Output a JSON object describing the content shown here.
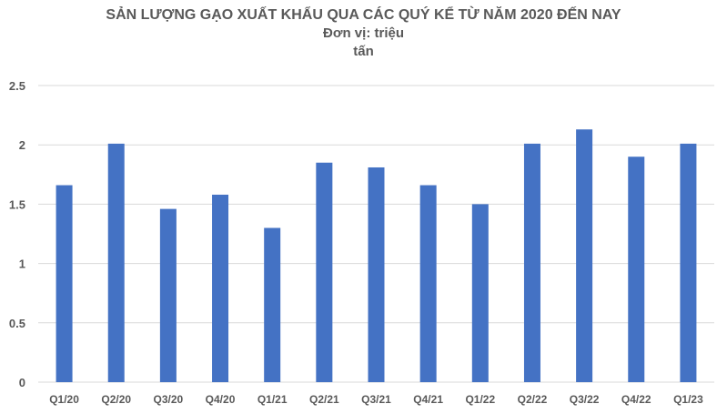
{
  "chart_data": {
    "type": "bar",
    "title": "SẢN LƯỢNG GẠO XUẤT KHẨU QUA CÁC QUÝ KỂ TỪ NĂM 2020 ĐẾN NAY",
    "subtitle_line1": "Đơn vị: triệu",
    "subtitle_line2": "tấn",
    "categories": [
      "Q1/20",
      "Q2/20",
      "Q3/20",
      "Q4/20",
      "Q1/21",
      "Q2/21",
      "Q3/21",
      "Q4/21",
      "Q1/22",
      "Q2/22",
      "Q3/22",
      "Q4/22",
      "Q1/23"
    ],
    "values": [
      1.66,
      2.01,
      1.46,
      1.58,
      1.3,
      1.85,
      1.81,
      1.66,
      1.5,
      2.01,
      2.13,
      1.9,
      2.01
    ],
    "ylim": [
      0,
      2.5
    ],
    "yticks": [
      "0",
      "0.5",
      "1",
      "1.5",
      "2",
      "2.5"
    ],
    "grid": true,
    "bar_color": "#4472C4",
    "grid_color": "#D9D9D9"
  }
}
